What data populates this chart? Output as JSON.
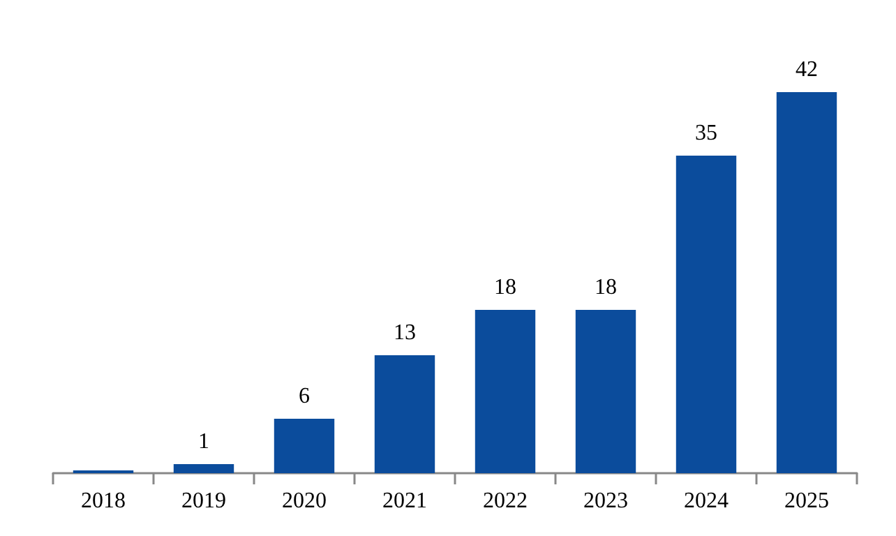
{
  "chart_data": {
    "type": "bar",
    "categories": [
      "2018",
      "2019",
      "2020",
      "2021",
      "2022",
      "2023",
      "2024",
      "2025"
    ],
    "values": [
      0.3,
      1,
      6,
      13,
      18,
      18,
      35,
      42
    ],
    "value_labels": [
      null,
      "1",
      "6",
      "13",
      "18",
      "18",
      "35",
      "42"
    ],
    "color": "#0b4c9c"
  }
}
